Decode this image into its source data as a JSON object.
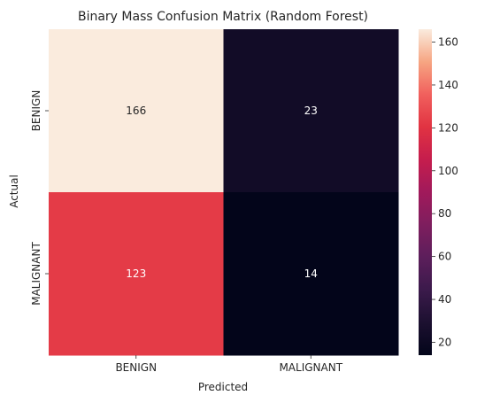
{
  "chart_data": {
    "type": "heatmap",
    "title": "Binary Mass Confusion Matrix (Random Forest)",
    "xlabel": "Predicted",
    "ylabel": "Actual",
    "x_categories": [
      "BENIGN",
      "MALIGNANT"
    ],
    "y_categories": [
      "BENIGN",
      "MALIGNANT"
    ],
    "values": [
      [
        166,
        23
      ],
      [
        123,
        14
      ]
    ],
    "colorscale": "rocket",
    "colorbar": {
      "range": [
        14,
        166
      ],
      "ticks": [
        20,
        40,
        60,
        80,
        100,
        120,
        140,
        160
      ]
    }
  }
}
